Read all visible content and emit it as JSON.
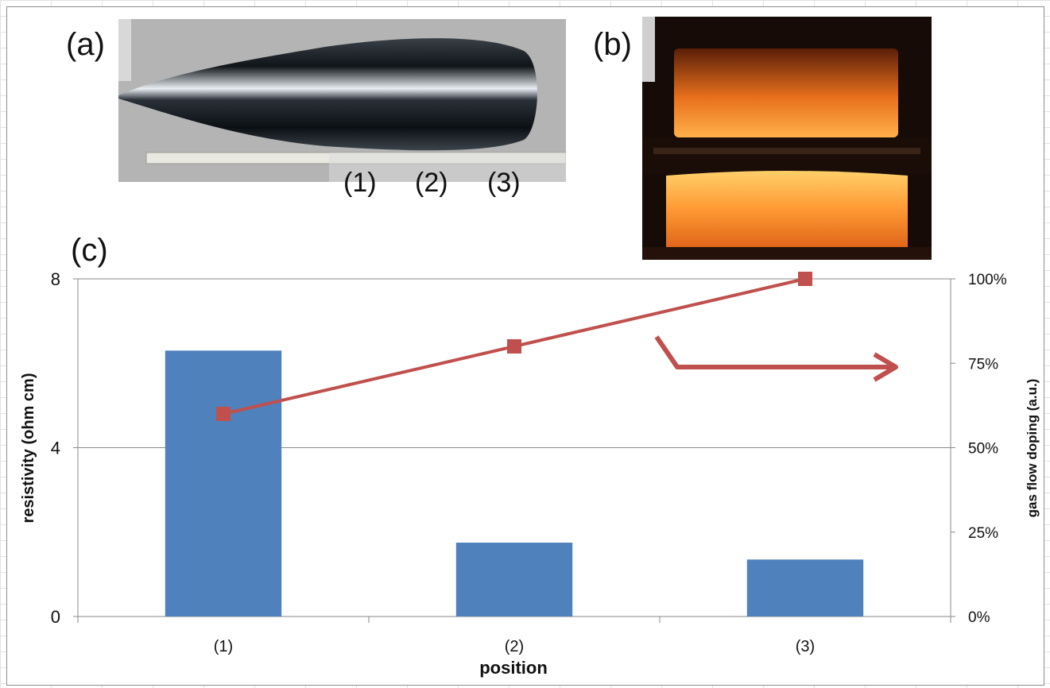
{
  "panels": {
    "a_label": "(a)",
    "b_label": "(b)",
    "c_label": "(c)",
    "photo_a_positions": [
      "(1)",
      "(2)",
      "(3)"
    ]
  },
  "chart_data": {
    "type": "bar",
    "categories": [
      "(1)",
      "(2)",
      "(3)"
    ],
    "xlabel": "position",
    "ylabel": "resistivity (ohm cm)",
    "y2label": "gas flow doping (a.u.)",
    "ylim": [
      0,
      8
    ],
    "yticks": [
      "0",
      "4",
      "8"
    ],
    "y2lim": [
      0,
      100
    ],
    "y2ticks": [
      "0%",
      "25%",
      "50%",
      "75%",
      "100%"
    ],
    "grid": true,
    "series": [
      {
        "axis": "left",
        "kind": "bar",
        "values": [
          6.3,
          1.75,
          1.35
        ],
        "color": "#4f81bd"
      },
      {
        "axis": "right",
        "kind": "line",
        "marker": "square",
        "values": [
          60,
          80,
          100
        ],
        "color": "#c0504d"
      }
    ],
    "annotation": {
      "type": "arrow",
      "direction": "right-axis",
      "color": "#c0504d"
    }
  }
}
